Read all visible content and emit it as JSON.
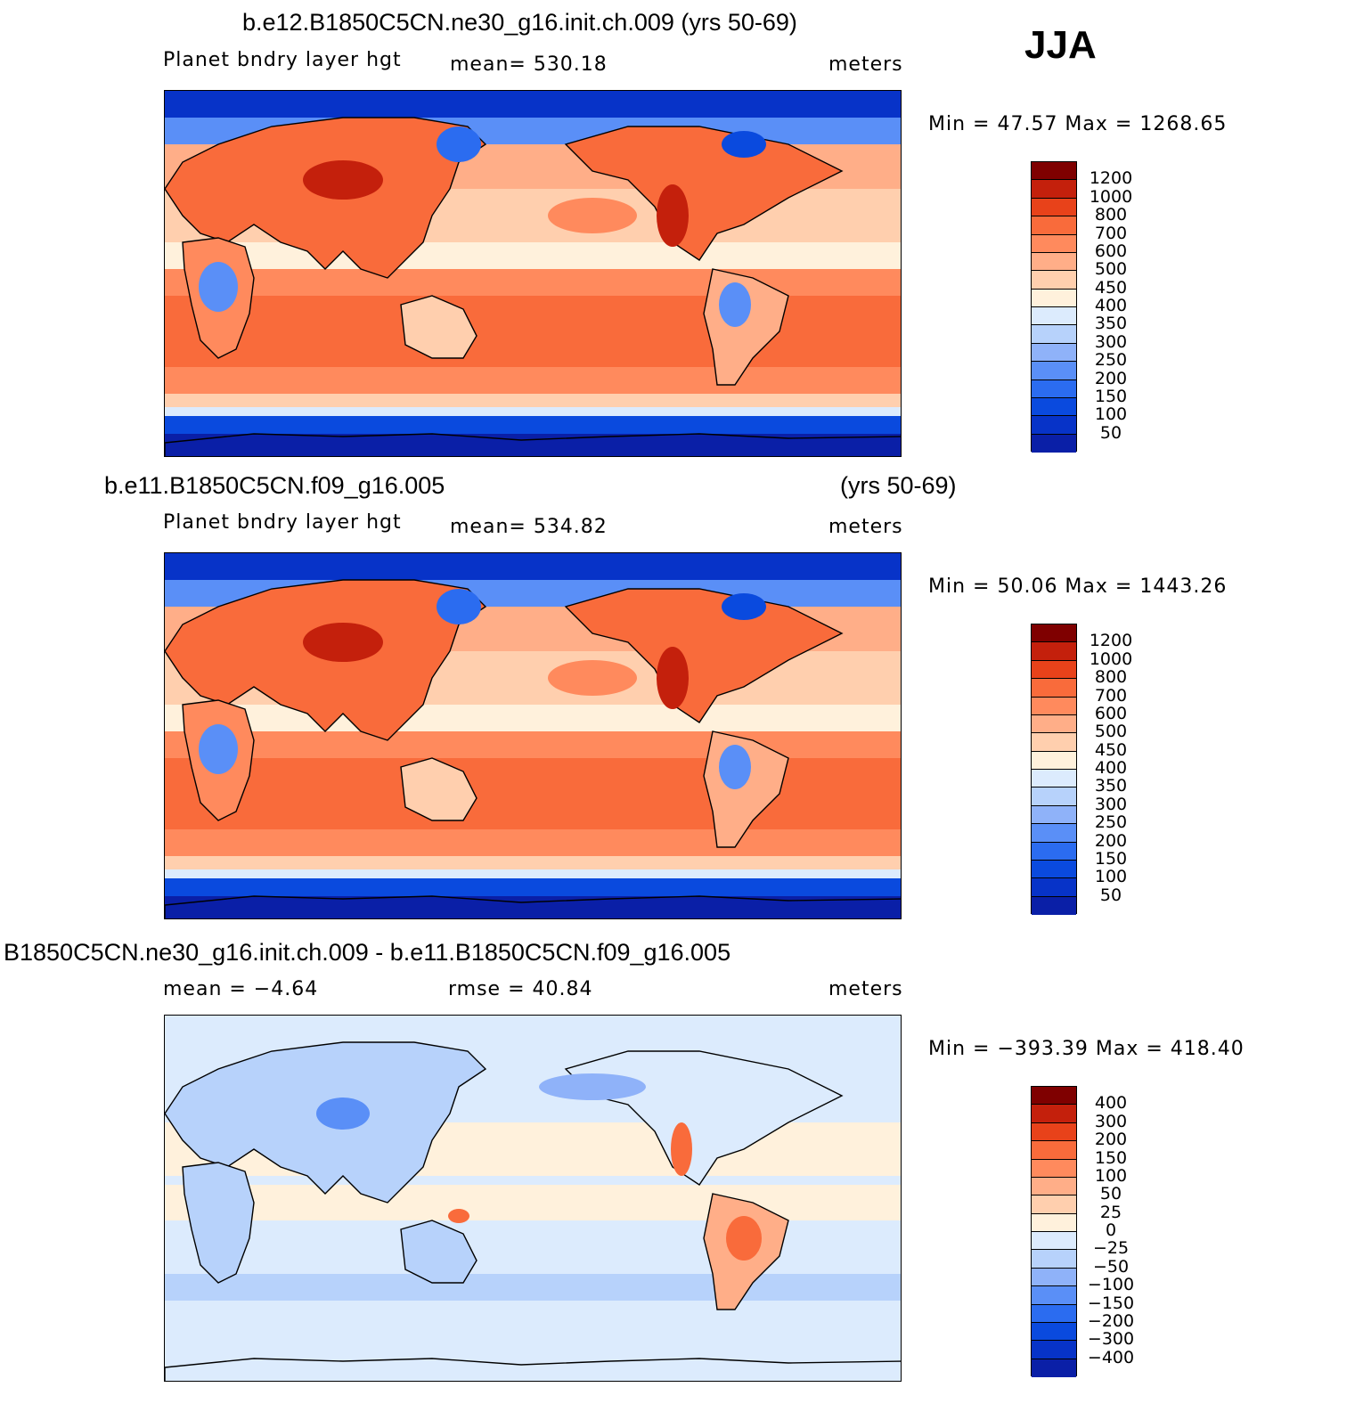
{
  "season": "JJA",
  "colors": {
    "abs_scale": [
      "#08007e",
      "#0a1fa7",
      "#0733c8",
      "#0a4ade",
      "#2b6cf0",
      "#5a8ff7",
      "#8fb2f9",
      "#b7d2fb",
      "#dcebfd",
      "#fff1dc",
      "#ffcfae",
      "#ffae88",
      "#ff8a5d",
      "#f96b3b",
      "#e8421a",
      "#c4200c",
      "#7f0000"
    ],
    "diff_scale": [
      "#08007e",
      "#0a1fa7",
      "#0733c8",
      "#0a4ade",
      "#2b6cf0",
      "#5a8ff7",
      "#8fb2f9",
      "#b7d2fb",
      "#dcebfd",
      "#fff1dc",
      "#ffcfae",
      "#ffae88",
      "#ff8a5d",
      "#f96b3b",
      "#e8421a",
      "#c4200c",
      "#7f0000"
    ]
  },
  "panels": [
    {
      "title_left": "b.e12.B1850C5CN.ne30_g16.init.ch.009 (yrs 50-69)",
      "title_right": "",
      "left_label": "Planet bndry layer hgt",
      "mid_label": "mean=  530.18",
      "right_label": "meters",
      "minmax": "Min =   47.57  Max  =  1268.65",
      "levels": [
        "1200",
        "1000",
        "800",
        "700",
        "600",
        "500",
        "450",
        "400",
        "350",
        "300",
        "250",
        "200",
        "150",
        "100",
        "50"
      ],
      "scale": "abs",
      "field_mean": 530.18
    },
    {
      "title_left": "b.e11.B1850C5CN.f09_g16.005",
      "title_right": "(yrs 50-69)",
      "left_label": "Planet bndry layer hgt",
      "mid_label": "mean=  534.82",
      "right_label": "meters",
      "minmax": "Min =   50.06  Max  =  1443.26",
      "levels": [
        "1200",
        "1000",
        "800",
        "700",
        "600",
        "500",
        "450",
        "400",
        "350",
        "300",
        "250",
        "200",
        "150",
        "100",
        "50"
      ],
      "scale": "abs",
      "field_mean": 534.82
    },
    {
      "title_left": "B1850C5CN.ne30_g16.init.ch.009 - b.e11.B1850C5CN.f09_g16.005",
      "title_right": "",
      "left_label": "mean  =    −4.64",
      "mid_label": "rmse  =    40.84",
      "right_label": "meters",
      "minmax": "Min  =  −393.39  Max  =  418.40",
      "levels": [
        "400",
        "300",
        "200",
        "150",
        "100",
        "50",
        "25",
        "0",
        "−25",
        "−50",
        "−100",
        "−150",
        "−200",
        "−300",
        "−400"
      ],
      "scale": "diff",
      "field_mean": -4.64
    }
  ]
}
